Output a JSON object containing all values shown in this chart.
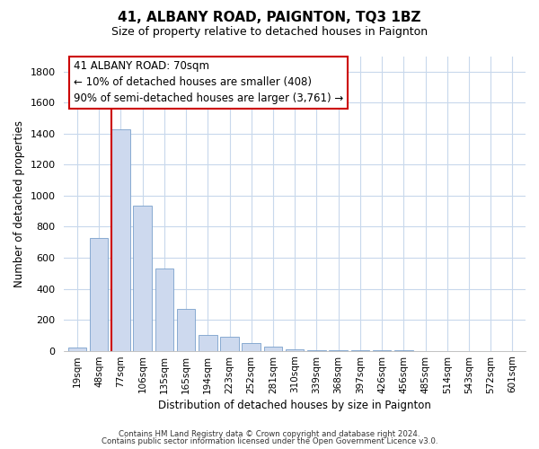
{
  "title": "41, ALBANY ROAD, PAIGNTON, TQ3 1BZ",
  "subtitle": "Size of property relative to detached houses in Paignton",
  "xlabel": "Distribution of detached houses by size in Paignton",
  "ylabel": "Number of detached properties",
  "bar_labels": [
    "19sqm",
    "48sqm",
    "77sqm",
    "106sqm",
    "135sqm",
    "165sqm",
    "194sqm",
    "223sqm",
    "252sqm",
    "281sqm",
    "310sqm",
    "339sqm",
    "368sqm",
    "397sqm",
    "426sqm",
    "456sqm",
    "485sqm",
    "514sqm",
    "543sqm",
    "572sqm",
    "601sqm"
  ],
  "bar_values": [
    20,
    730,
    1430,
    935,
    530,
    270,
    100,
    90,
    50,
    25,
    10,
    5,
    2,
    1,
    1,
    1,
    0,
    0,
    0,
    0,
    0
  ],
  "bar_color": "#cdd9ee",
  "bar_edge_color": "#7aa0cc",
  "highlight_index": 2,
  "highlight_line_color": "#cc0000",
  "ylim": [
    0,
    1900
  ],
  "yticks": [
    0,
    200,
    400,
    600,
    800,
    1000,
    1200,
    1400,
    1600,
    1800
  ],
  "annotation_box_text": "41 ALBANY ROAD: 70sqm\n← 10% of detached houses are smaller (408)\n90% of semi-detached houses are larger (3,761) →",
  "footer_line1": "Contains HM Land Registry data © Crown copyright and database right 2024.",
  "footer_line2": "Contains public sector information licensed under the Open Government Licence v3.0.",
  "background_color": "#ffffff",
  "grid_color": "#c8d8ec"
}
